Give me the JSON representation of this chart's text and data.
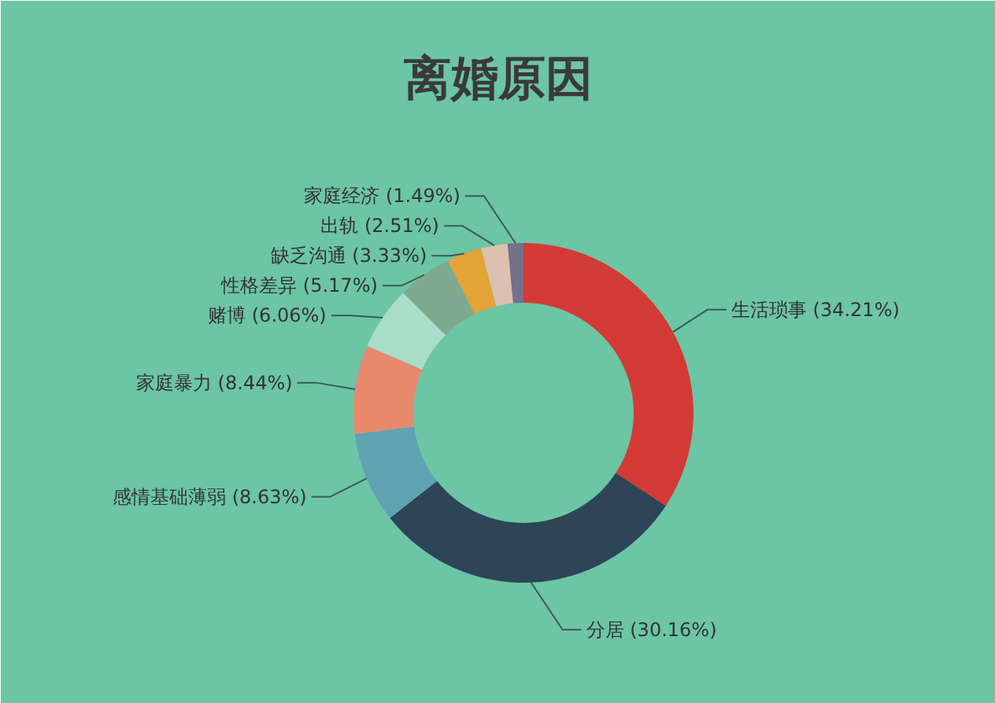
{
  "chart_data": {
    "type": "donut",
    "title": "离婚原因",
    "categories": [
      "生活琐事",
      "分居",
      "感情基础薄弱",
      "家庭暴力",
      "赌博",
      "性格差异",
      "缺乏沟通",
      "出轨",
      "家庭经济"
    ],
    "values": [
      34.21,
      30.16,
      8.63,
      8.44,
      6.06,
      5.17,
      3.33,
      2.51,
      1.49
    ],
    "value_labels": [
      "(34.21%)",
      "(30.16%)",
      "(8.63%)",
      "(8.44%)",
      "(6.06%)",
      "(5.17%)",
      "(3.33%)",
      "(2.51%)",
      "(1.49%)"
    ],
    "colors": [
      "#d33a36",
      "#2d4556",
      "#5fa3b2",
      "#e8896c",
      "#a9dcc9",
      "#7fa98e",
      "#e3a337",
      "#dcc0b0",
      "#76708a"
    ]
  }
}
